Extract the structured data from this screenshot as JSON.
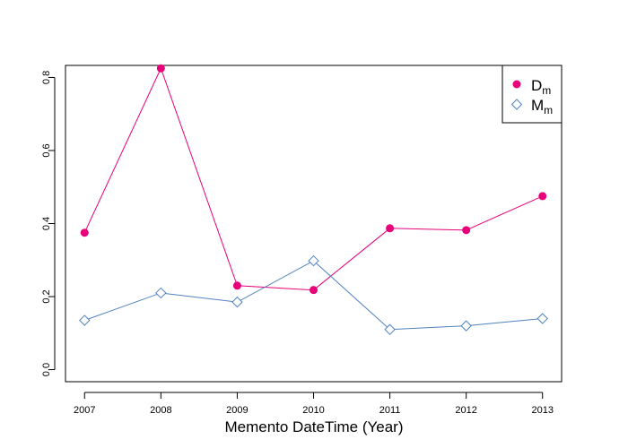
{
  "chart_data": {
    "type": "line",
    "title": "",
    "xlabel": "Memento DateTime (Year)",
    "ylabel": "",
    "x": [
      "2007",
      "2008",
      "2009",
      "2010",
      "2011",
      "2012",
      "2013"
    ],
    "xlim": [
      2006.75,
      2013.25
    ],
    "ylim": [
      -0.033,
      0.833
    ],
    "yticks": [
      "0.0",
      "0.2",
      "0.4",
      "0.6",
      "0.8"
    ],
    "grid": false,
    "legend_position": "top-right",
    "series": [
      {
        "name": "D",
        "name_subscript": "m",
        "marker": "filled-circle",
        "color": "#E8007A",
        "values": [
          0.375,
          0.825,
          0.23,
          0.218,
          0.387,
          0.382,
          0.475
        ]
      },
      {
        "name": "M",
        "name_subscript": "m",
        "marker": "open-diamond",
        "color": "#4F82BD",
        "values": [
          0.135,
          0.21,
          0.185,
          0.298,
          0.11,
          0.12,
          0.14
        ]
      }
    ]
  }
}
